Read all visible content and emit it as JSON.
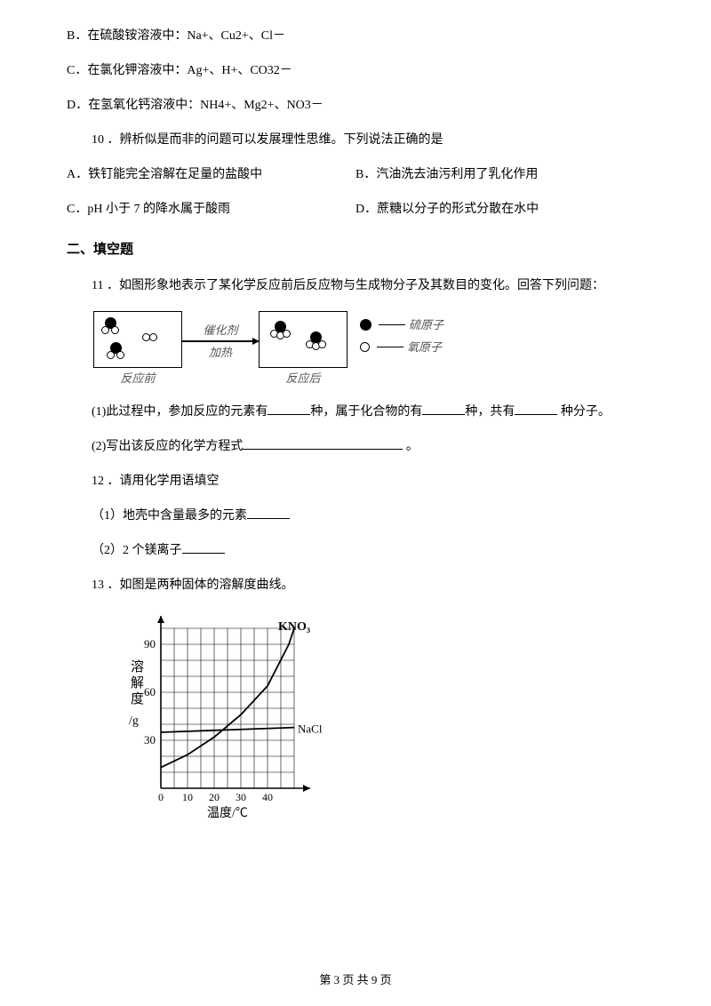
{
  "q_opts_continued": {
    "b": "B．在硫酸铵溶液中：Na+、Cu2+、Cl－",
    "c": "C．在氯化钾溶液中：Ag+、H+、CO32－",
    "d": "D．在氢氧化钙溶液中：NH4+、Mg2+、NO3－"
  },
  "q10": {
    "stem": "10 ．辨析似是而非的问题可以发展理性思维。下列说法正确的是",
    "a": "A．铁钉能完全溶解在足量的盐酸中",
    "b": "B．汽油洗去油污利用了乳化作用",
    "c": "C．pH 小于 7 的降水属于酸雨",
    "d": "D．蔗糖以分子的形式分散在水中"
  },
  "section2": "二、填空题",
  "q11": {
    "stem": "11 ．如图形象地表示了某化学反应前后反应物与生成物分子及其数目的变化。回答下列问题：",
    "diagram": {
      "before": "反应前",
      "after": "反应后",
      "catalyst": "催化剂",
      "heat": "加热",
      "sulfur": "硫原子",
      "oxygen": "氧原子"
    },
    "p1a": "(1)此过程中，参加反应的元素有",
    "p1b": "种，属于化合物的有",
    "p1c": "种，共有",
    "p1d": " 种分子。",
    "p2a": "(2)写出该反应的化学方程式",
    "p2b": " 。"
  },
  "q12": {
    "stem": "12 ．请用化学用语填空",
    "p1": "（1）地壳中含量最多的元素",
    "p2": "（2）2 个镁离子"
  },
  "q13": {
    "stem": "13 ．如图是两种固体的溶解度曲线。",
    "chart": {
      "ylabel1": "溶",
      "ylabel2": "解",
      "ylabel3": "度",
      "yunit": "/g",
      "xlabel": "温度/℃",
      "kno3": "KNO₃",
      "nacl": "NaCl",
      "y_ticks": [
        30,
        60,
        90
      ],
      "x_ticks": [
        0,
        10,
        20,
        30,
        40
      ],
      "axis_color": "#000000",
      "grid_color": "#000000",
      "grid_cells_x": 10,
      "grid_cells_y": 10,
      "grid_area_w": 150,
      "grid_area_h": 180,
      "y_max": 100,
      "x_max": 50,
      "kno3_points": [
        [
          0,
          13
        ],
        [
          10,
          21
        ],
        [
          20,
          32
        ],
        [
          30,
          46
        ],
        [
          40,
          64
        ],
        [
          48,
          90
        ],
        [
          50,
          100
        ]
      ],
      "nacl_points": [
        [
          0,
          35
        ],
        [
          50,
          38
        ]
      ]
    }
  },
  "footer": "第 3 页 共 9 页"
}
